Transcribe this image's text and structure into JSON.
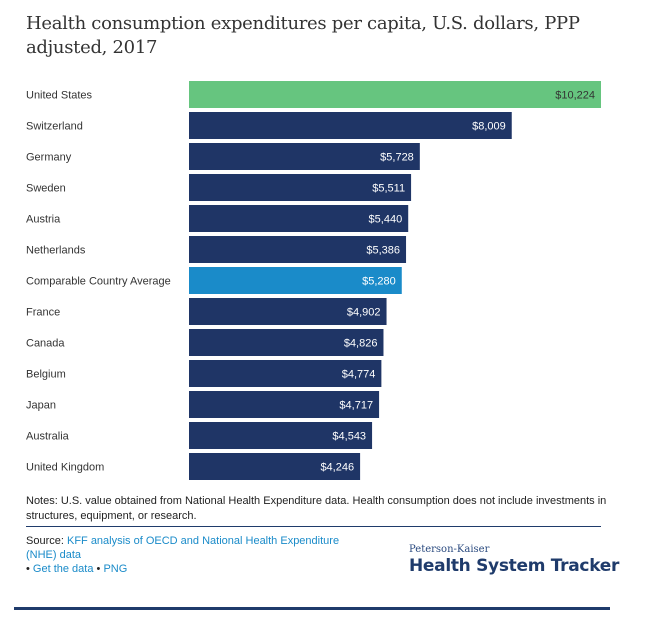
{
  "title": "Health consumption expenditures per capita, U.S. dollars, PPP adjusted, 2017",
  "colors": {
    "highlight_us": "#66c57f",
    "average": "#1a8bc9",
    "default": "#1f3566",
    "label_dark": "#333333",
    "label_light": "#ffffff"
  },
  "chart_data": {
    "type": "bar",
    "orientation": "horizontal",
    "title": "Health consumption expenditures per capita, U.S. dollars, PPP adjusted, 2017",
    "xlabel": "",
    "ylabel": "",
    "xlim": [
      0,
      10224
    ],
    "grid": false,
    "categories": [
      "United States",
      "Switzerland",
      "Germany",
      "Sweden",
      "Austria",
      "Netherlands",
      "Comparable Country Average",
      "France",
      "Canada",
      "Belgium",
      "Japan",
      "Australia",
      "United Kingdom"
    ],
    "values": [
      10224,
      8009,
      5728,
      5511,
      5440,
      5386,
      5280,
      4902,
      4826,
      4774,
      4717,
      4543,
      4246
    ],
    "value_labels": [
      "$10,224",
      "$8,009",
      "$5,728",
      "$5,511",
      "$5,440",
      "$5,386",
      "$5,280",
      "$4,902",
      "$4,826",
      "$4,774",
      "$4,717",
      "$4,543",
      "$4,246"
    ],
    "bar_kind": [
      "us",
      "default",
      "default",
      "default",
      "default",
      "default",
      "average",
      "default",
      "default",
      "default",
      "default",
      "default",
      "default"
    ]
  },
  "notes": "Notes: U.S. value obtained from National Health Expenditure data. Health consumption does not include investments in structures, equipment, or research.",
  "source": {
    "label": "Source:",
    "link_text": "KFF analysis of OECD and National Health Expenditure (NHE) data",
    "bullet": "•",
    "get_data": "Get the data",
    "png": "PNG"
  },
  "logo": {
    "top": "Peterson-Kaiser",
    "main": "Health System Tracker"
  }
}
